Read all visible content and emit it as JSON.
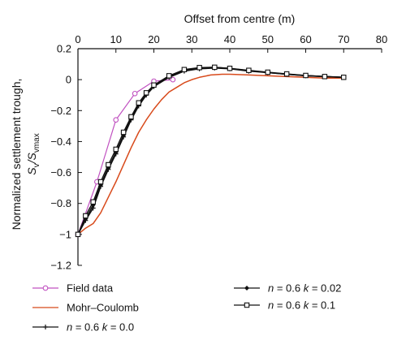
{
  "chart_data": {
    "type": "line",
    "xlabel": "Offset from centre (m)",
    "ylabel_line1": "Normalized settlement trough,",
    "ylabel_line2_parts": [
      "S",
      "v",
      "/S",
      "vmax"
    ],
    "xlim": [
      0,
      80
    ],
    "ylim": [
      -1.2,
      0.2
    ],
    "x_ticks": [
      0,
      10,
      20,
      30,
      40,
      50,
      60,
      70,
      80
    ],
    "y_ticks": [
      0.2,
      0,
      -0.2,
      -0.4,
      -0.6,
      -0.8,
      -1,
      -1.2
    ],
    "x_tick_labels": [
      "0",
      "10",
      "20",
      "30",
      "40",
      "50",
      "60",
      "70",
      "80"
    ],
    "y_tick_labels": [
      "0.2",
      "0",
      "−0.2",
      "−0.4",
      "−0.6",
      "−0.8",
      "−1",
      "−1.2"
    ],
    "x_axis_position": "top",
    "grid": false,
    "legend_position": "bottom",
    "series": [
      {
        "name": "Field data",
        "color": "#c050c0",
        "marker": "open-circle",
        "x": [
          0,
          5,
          10,
          15,
          20,
          25
        ],
        "y": [
          -1.0,
          -0.66,
          -0.26,
          -0.09,
          -0.01,
          0.0
        ]
      },
      {
        "name": "Mohr–Coulomb",
        "color": "#d84a1b",
        "marker": "none",
        "x": [
          0,
          2,
          4,
          6,
          8,
          10,
          12,
          14,
          16,
          18,
          20,
          22,
          24,
          26,
          28,
          30,
          32,
          35,
          38,
          40,
          45,
          50,
          55,
          60,
          65,
          70
        ],
        "y": [
          -1.0,
          -0.96,
          -0.93,
          -0.86,
          -0.76,
          -0.66,
          -0.55,
          -0.44,
          -0.34,
          -0.26,
          -0.19,
          -0.13,
          -0.08,
          -0.05,
          -0.02,
          0.0,
          0.015,
          0.03,
          0.035,
          0.035,
          0.03,
          0.025,
          0.02,
          0.015,
          0.01,
          0.01
        ]
      },
      {
        "name_parts": [
          "n",
          " = 0.6 ",
          "k",
          " = 0.0"
        ],
        "color": "#111111",
        "marker": "plus",
        "x": [
          0,
          2,
          4,
          6,
          8,
          10,
          12,
          14,
          16,
          18,
          20,
          24,
          28,
          32,
          36,
          40,
          45,
          50,
          55,
          60,
          65,
          70
        ],
        "y": [
          -1.0,
          -0.91,
          -0.83,
          -0.69,
          -0.58,
          -0.48,
          -0.37,
          -0.26,
          -0.17,
          -0.1,
          -0.045,
          0.015,
          0.055,
          0.07,
          0.075,
          0.07,
          0.055,
          0.045,
          0.035,
          0.025,
          0.02,
          0.015
        ]
      },
      {
        "name_parts": [
          "n",
          " = 0.6 ",
          "k",
          " = 0.02"
        ],
        "color": "#111111",
        "marker": "diamond",
        "x": [
          0,
          2,
          4,
          6,
          8,
          10,
          12,
          14,
          16,
          18,
          20,
          24,
          28,
          32,
          36,
          40,
          45,
          50,
          55,
          60,
          65,
          70
        ],
        "y": [
          -1.0,
          -0.9,
          -0.81,
          -0.68,
          -0.57,
          -0.47,
          -0.36,
          -0.25,
          -0.16,
          -0.095,
          -0.04,
          0.02,
          0.06,
          0.075,
          0.08,
          0.072,
          0.058,
          0.046,
          0.035,
          0.026,
          0.02,
          0.015
        ]
      },
      {
        "name_parts": [
          "n",
          " = 0.6 ",
          "k",
          " = 0.1"
        ],
        "color": "#111111",
        "marker": "open-square",
        "x": [
          0,
          2,
          4,
          6,
          8,
          10,
          12,
          14,
          16,
          18,
          20,
          24,
          28,
          32,
          36,
          40,
          45,
          50,
          55,
          60,
          65,
          70
        ],
        "y": [
          -1.0,
          -0.88,
          -0.79,
          -0.66,
          -0.55,
          -0.45,
          -0.34,
          -0.24,
          -0.15,
          -0.085,
          -0.035,
          0.025,
          0.065,
          0.078,
          0.08,
          0.073,
          0.06,
          0.048,
          0.037,
          0.027,
          0.02,
          0.015
        ]
      }
    ]
  }
}
